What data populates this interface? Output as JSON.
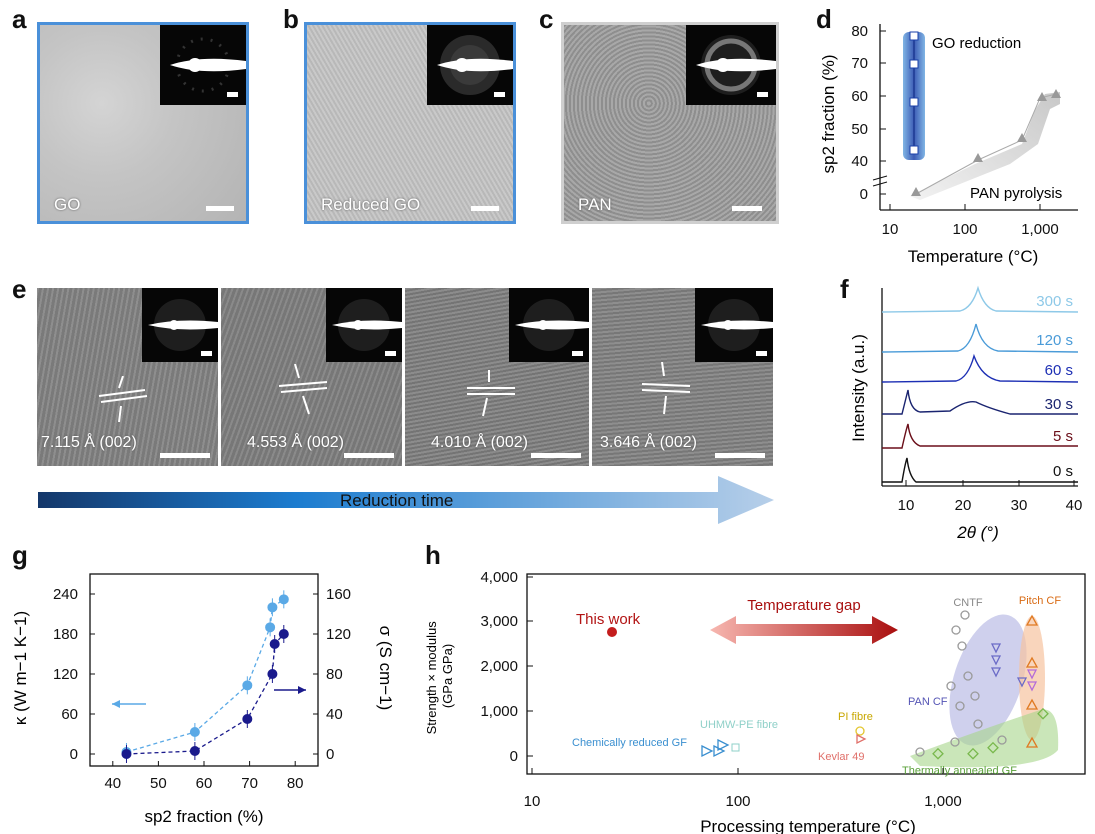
{
  "panels": {
    "a": {
      "letter": "a",
      "label": "GO",
      "border": "#4a90d9"
    },
    "b": {
      "letter": "b",
      "label": "Reduced GO",
      "border": "#4a90d9"
    },
    "c": {
      "letter": "c",
      "label": "PAN",
      "border": "#cfcfcf"
    },
    "e": {
      "letter": "e",
      "spacings": [
        "7.115 Å (002)",
        "4.553 Å (002)",
        "4.010 Å (002)",
        "3.646 Å (002)"
      ],
      "arrow_label": "Reduction time"
    }
  },
  "chart_data": [
    {
      "id": "d",
      "type": "scatter",
      "letter": "d",
      "xlabel": "Temperature (°C)",
      "xscale": "log",
      "xticks": [
        "10",
        "100",
        "1,000"
      ],
      "ylabel": "sp2 fraction (%)",
      "yticks": [
        "0",
        "40",
        "50",
        "60",
        "70",
        "80"
      ],
      "series": [
        {
          "name": "GO reduction",
          "x": [
            25,
            25,
            25,
            25,
            25
          ],
          "y": [
            80,
            75,
            70,
            60,
            43
          ],
          "color": "#1a3fa8"
        },
        {
          "name": "PAN pyrolysis",
          "x": [
            25,
            250,
            600,
            1000,
            1300
          ],
          "y": [
            0,
            41,
            46,
            59,
            60
          ],
          "color": "#999999"
        }
      ]
    },
    {
      "id": "f",
      "type": "line",
      "letter": "f",
      "xlabel": "2θ (°)",
      "xticks": [
        "10",
        "20",
        "30",
        "40"
      ],
      "xlim": [
        5,
        42
      ],
      "ylabel": "Intensity (a.u.)",
      "series": [
        {
          "name": "300 s",
          "color": "#8ec9e8"
        },
        {
          "name": "120 s",
          "color": "#4a9bd8"
        },
        {
          "name": "60 s",
          "color": "#1d2fb4"
        },
        {
          "name": "30 s",
          "color": "#1a2470"
        },
        {
          "name": "5 s",
          "color": "#6b0f1a"
        },
        {
          "name": "0 s",
          "color": "#111111"
        }
      ]
    },
    {
      "id": "g",
      "type": "scatter",
      "letter": "g",
      "xlabel": "sp2 fraction (%)",
      "xticks": [
        "40",
        "50",
        "60",
        "70",
        "80"
      ],
      "xlim": [
        35,
        85
      ],
      "ylabel": "κ (W m−1 K−1)",
      "yticks": [
        "0",
        "60",
        "120",
        "180",
        "240"
      ],
      "ylim": [
        -18,
        270
      ],
      "y2label": "σ (S cm−1)",
      "y2ticks": [
        "0",
        "40",
        "80",
        "120",
        "160"
      ],
      "y2lim": [
        -12,
        180
      ],
      "series": [
        {
          "name": "κ",
          "axis": "left",
          "color": "#5aa9e6",
          "x": [
            43,
            58,
            69.5,
            74.5,
            75,
            77.5
          ],
          "y": [
            3,
            33,
            103,
            190,
            220,
            232
          ]
        },
        {
          "name": "σ",
          "axis": "right",
          "color": "#1a1a8c",
          "x": [
            43,
            58,
            69.5,
            75,
            75.5,
            77.5
          ],
          "y": [
            0,
            3,
            35,
            80,
            110,
            120
          ]
        }
      ]
    },
    {
      "id": "h",
      "type": "scatter",
      "letter": "h",
      "xlabel": "Processing temperature (°C)",
      "xscale": "log",
      "xticks": [
        "10",
        "100",
        "1,000"
      ],
      "ylabel": "Strength × modulus\n(GPa GPa)",
      "yticks": [
        "0",
        "1,000",
        "2,000",
        "3,000",
        "4,000"
      ],
      "ylim": [
        -500,
        4300
      ],
      "annotations": [
        "This work",
        "Temperature gap",
        "CNTF",
        "Pitch CF",
        "PAN CF",
        "UHMW-PE fibre",
        "PI fibre",
        "Chemically reduced GF",
        "Kevlar 49",
        "Thermally annealed GF"
      ]
    }
  ]
}
